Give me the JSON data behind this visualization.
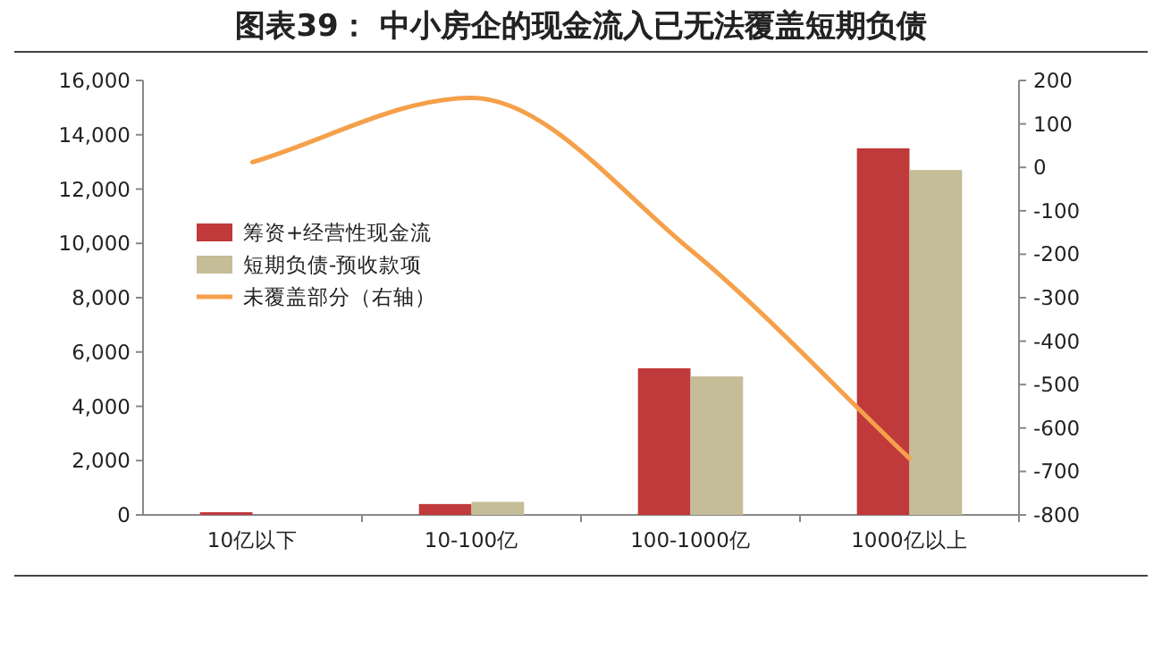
{
  "chart_data": {
    "type": "bar",
    "title": "图表39：    中小房企的现金流入已无法覆盖短期负债",
    "categories": [
      "10亿以下",
      "10-100亿",
      "100-1000亿",
      "1000亿以上"
    ],
    "series": [
      {
        "name": "筹资+经营性现金流",
        "color": "#c0393b",
        "values": [
          100,
          400,
          5400,
          13500
        ]
      },
      {
        "name": "短期负债-预收款项",
        "color": "#c4bd97",
        "values": [
          null,
          480,
          5100,
          12700
        ]
      },
      {
        "name": "未覆盖部分（右轴）",
        "color": "#f5a04a",
        "type": "line",
        "axis": "y2",
        "values": [
          12,
          160,
          -190,
          -670
        ]
      }
    ],
    "ylim": [
      0,
      16000
    ],
    "yticks": [
      {
        "value": 0,
        "label": "0"
      },
      {
        "value": 2000,
        "label": "2,000"
      },
      {
        "value": 4000,
        "label": "4,000"
      },
      {
        "value": 6000,
        "label": "6,000"
      },
      {
        "value": 8000,
        "label": "8,000"
      },
      {
        "value": 10000,
        "label": "10,000"
      },
      {
        "value": 12000,
        "label": "12,000"
      },
      {
        "value": 14000,
        "label": "14,000"
      },
      {
        "value": 16000,
        "label": "16,000"
      }
    ],
    "y2lim": [
      -800,
      200
    ],
    "y2ticks": [
      200,
      100,
      0,
      -100,
      -200,
      -300,
      -400,
      -500,
      -600,
      -700,
      -800
    ],
    "legend": "left"
  }
}
